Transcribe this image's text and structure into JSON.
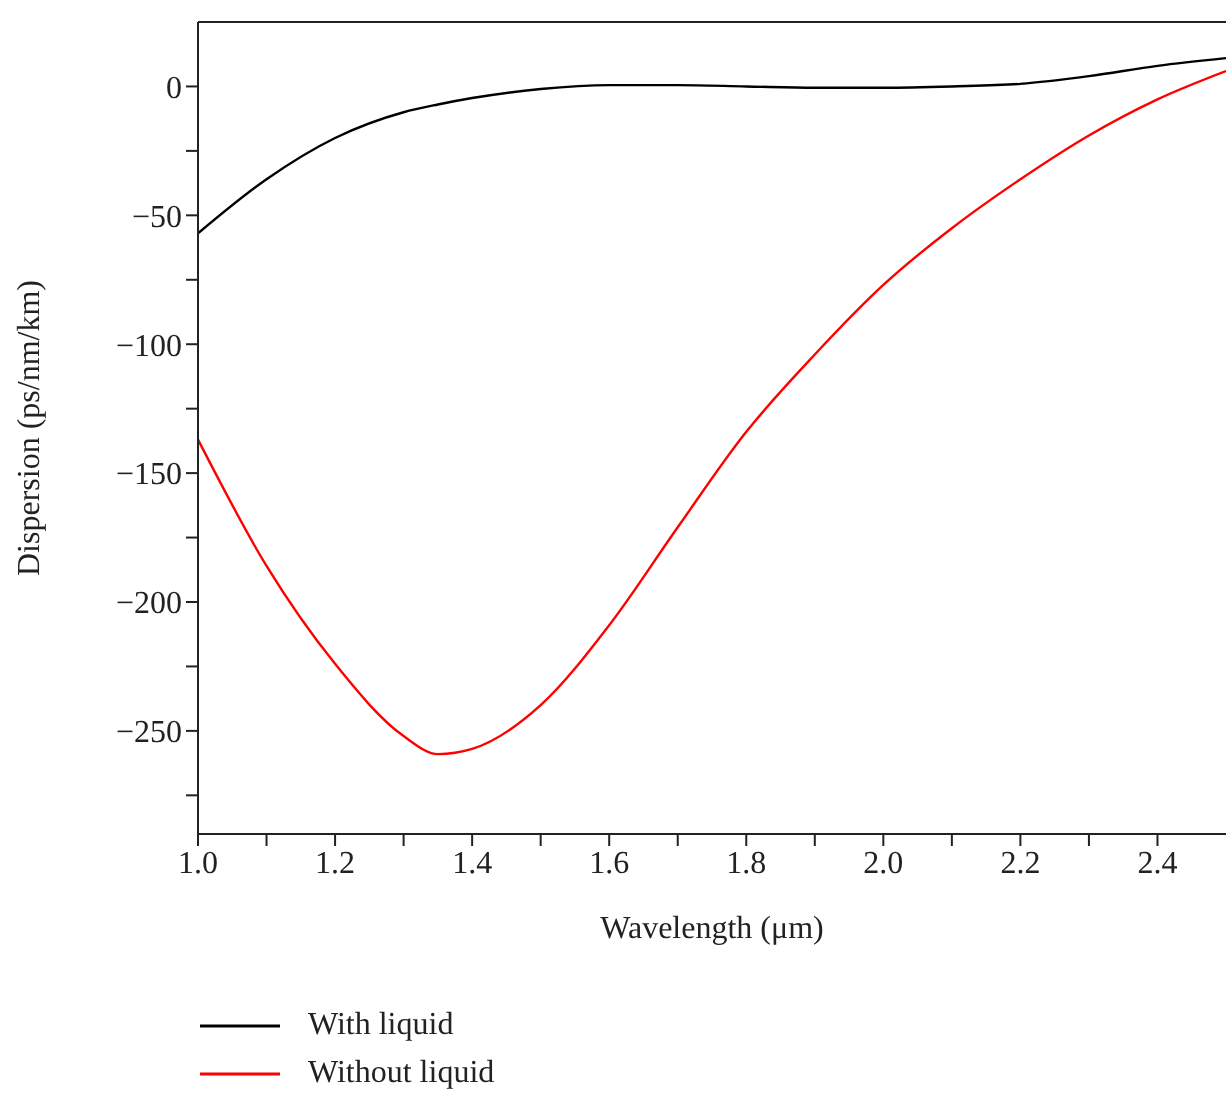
{
  "chart_data": {
    "type": "line",
    "xlabel": "Wavelength (μm)",
    "ylabel": "Dispersion (ps/nm/km)",
    "x": [
      1.0,
      1.1,
      1.2,
      1.3,
      1.35,
      1.4,
      1.5,
      1.6,
      1.7,
      1.8,
      1.9,
      2.0,
      2.1,
      2.2,
      2.3,
      2.4,
      2.5
    ],
    "series": [
      {
        "name": "With liquid",
        "color": "#000000",
        "values": [
          -57,
          -36,
          -20,
          -10,
          -7,
          -4.5,
          -1,
          0.5,
          0.5,
          0,
          -0.5,
          -0.5,
          0,
          1,
          4,
          8,
          11
        ]
      },
      {
        "name": "Without liquid",
        "color": "#ff0000",
        "values": [
          -137,
          -186,
          -224,
          -252,
          -259,
          -257,
          -240,
          -209,
          -171,
          -134,
          -104,
          -77,
          -55,
          -36,
          -19,
          -5,
          6
        ]
      }
    ],
    "xlim": [
      1.0,
      2.5
    ],
    "ylim": [
      -290,
      25
    ],
    "xticks": [
      {
        "value": 1.0,
        "label": "1.0"
      },
      {
        "value": 1.1,
        "label": null
      },
      1.2,
      {
        "value": 1.3,
        "label": null
      },
      1.4,
      {
        "value": 1.5,
        "label": null
      },
      1.6,
      {
        "value": 1.7,
        "label": null
      },
      1.8,
      {
        "value": 1.9,
        "label": null
      },
      {
        "value": 2.0,
        "label": "2.0"
      },
      {
        "value": 2.1,
        "label": null
      },
      2.2,
      {
        "value": 2.3,
        "label": null
      },
      2.4
    ],
    "yticks": [
      {
        "value": -275,
        "label": null
      },
      -250,
      {
        "value": -225,
        "label": null
      },
      -200,
      {
        "value": -175,
        "label": null
      },
      -150,
      {
        "value": -125,
        "label": null
      },
      -100,
      {
        "value": -75,
        "label": null
      },
      -50,
      {
        "value": -25,
        "label": null
      },
      0
    ],
    "grid": false,
    "legend": "bottom left",
    "marker": "none",
    "line_style": "solid"
  }
}
